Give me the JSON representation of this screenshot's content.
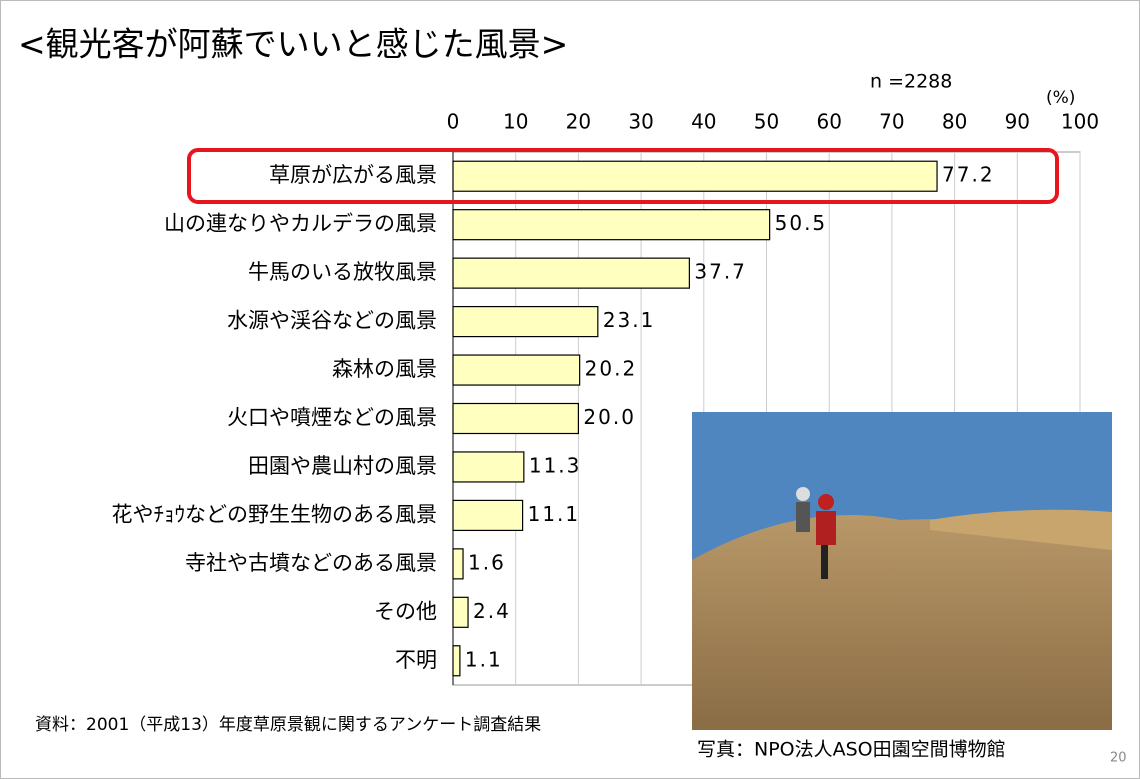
{
  "chart_data": {
    "type": "bar",
    "orientation": "horizontal",
    "title": "<観光客が阿蘇でいいと感じた風景>",
    "sample_size": "n =2288",
    "unit": "(%)",
    "categories": [
      "草原が広がる風景",
      "山の連なりやカルデラの風景",
      "牛馬のいる放牧風景",
      "水源や渓谷などの風景",
      "森林の風景",
      "火口や噴煙などの風景",
      "田園や農山村の風景",
      "花やﾁｮｳなどの野生生物のある風景",
      "寺社や古墳などのある風景",
      "その他",
      "不明"
    ],
    "values": [
      77.2,
      50.5,
      37.7,
      23.1,
      20.2,
      20.0,
      11.3,
      11.1,
      1.6,
      2.4,
      1.1
    ],
    "value_labels": [
      "77.2",
      "50.5",
      "37.7",
      "23.1",
      "20.2",
      "20.0",
      "11.3",
      "11.1",
      "1.6",
      "2.4",
      "1.1"
    ],
    "color": "#ffffc0",
    "xlim": [
      0,
      100
    ],
    "xticks": [
      0,
      10,
      20,
      30,
      40,
      50,
      60,
      70,
      80,
      90,
      100
    ],
    "grid": true,
    "source": "資料：2001（平成13）年度草原景観に関するアンケート調査結果",
    "photo_caption": "写真：NPO法人ASO田園空間博物館",
    "page_number": "20"
  }
}
